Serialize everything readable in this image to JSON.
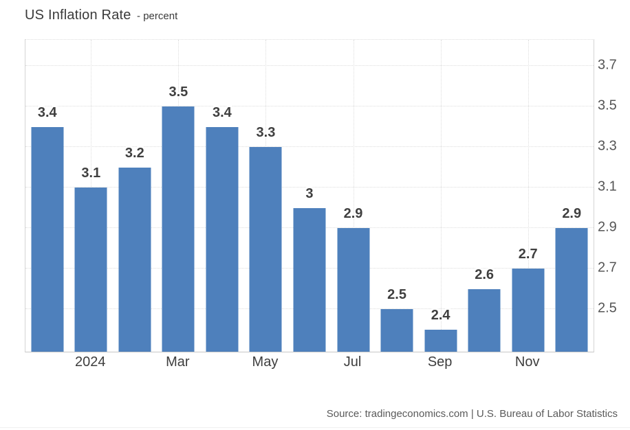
{
  "header": {
    "title": "US Inflation Rate",
    "subtitle": "- percent"
  },
  "footer": {
    "source": "Source: tradingeconomics.com | U.S. Bureau of Labor Statistics"
  },
  "colors": {
    "bar": "#4e80bc",
    "grid": "#dddddd",
    "axis": "#c6c6c6",
    "value_label": "#3f3f3f",
    "tick_label": "#555555"
  },
  "chart_data": {
    "type": "bar",
    "title": "US Inflation Rate",
    "subtitle_unit": "percent",
    "values": [
      3.4,
      3.1,
      3.2,
      3.5,
      3.4,
      3.3,
      3.0,
      2.9,
      2.5,
      2.4,
      2.6,
      2.7,
      2.9
    ],
    "bar_value_labels": [
      "3.4",
      "3.1",
      "3.2",
      "3.5",
      "3.4",
      "3.3",
      "3",
      "2.9",
      "2.5",
      "2.4",
      "2.6",
      "2.7",
      "2.9"
    ],
    "x_tick_labels": [
      "2024",
      "Mar",
      "May",
      "Jul",
      "Sep",
      "Nov"
    ],
    "x_tick_indices": [
      1,
      3,
      5,
      7,
      9,
      11
    ],
    "y_ticks": [
      2.5,
      2.7,
      2.9,
      3.1,
      3.3,
      3.5,
      3.7
    ],
    "y_tick_labels": [
      "2.5",
      "2.7",
      "2.9",
      "3.1",
      "3.3",
      "3.5",
      "3.7"
    ],
    "ylim": [
      2.29,
      3.83
    ],
    "y_axis_side": "right",
    "grid": "dotted",
    "legend": "none",
    "bar_color": "#4e80bc",
    "source": "Source: tradingeconomics.com | U.S. Bureau of Labor Statistics"
  }
}
